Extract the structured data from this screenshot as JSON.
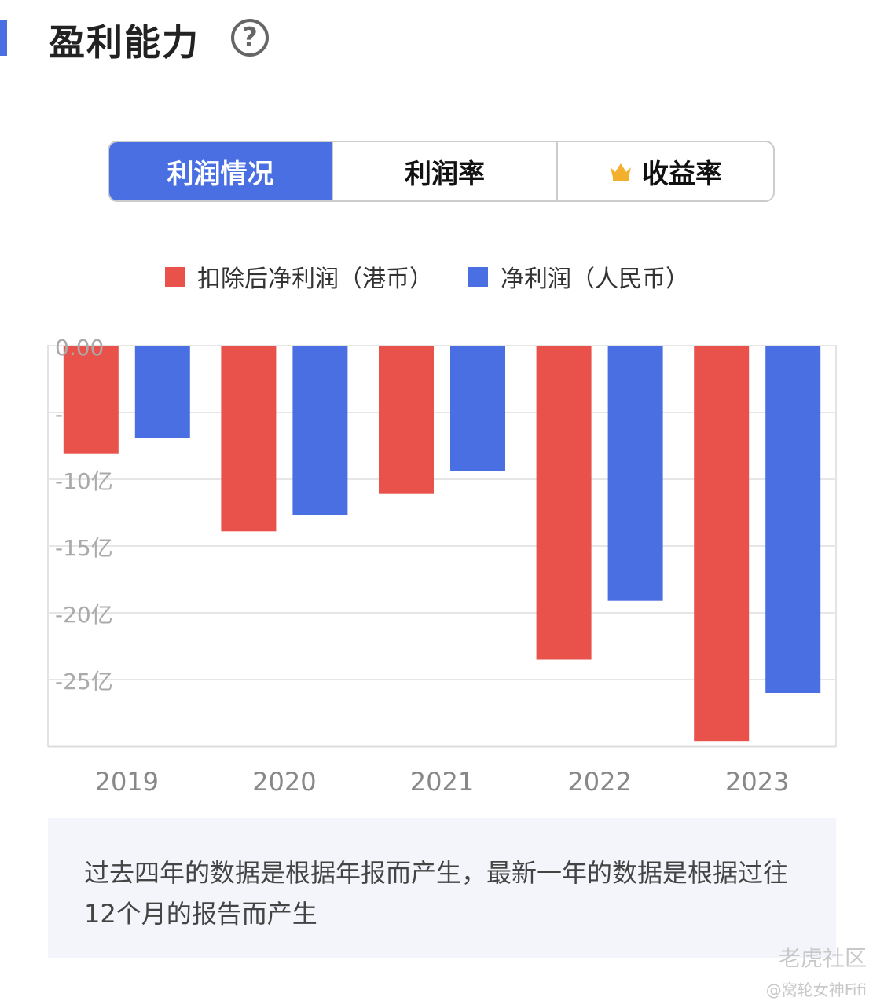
{
  "header": {
    "title": "盈利能力",
    "help_icon": "question-circle-icon",
    "help_glyph": "?"
  },
  "tabs": [
    {
      "label": "利润情况",
      "active": true
    },
    {
      "label": "利润率",
      "active": false
    },
    {
      "label": "收益率",
      "active": false,
      "icon": "crown-icon"
    }
  ],
  "colors": {
    "accent": "#4a6fe3",
    "red_series": "#e8524a",
    "blue_series": "#4a6fe3"
  },
  "chart_data": {
    "type": "bar",
    "categories": [
      "2019",
      "2020",
      "2021",
      "2022",
      "2023"
    ],
    "series": [
      {
        "name": "扣除后净利润（港币）",
        "color": "#e8524a",
        "values": [
          -8.1,
          -13.9,
          -11.1,
          -23.5,
          -29.6
        ]
      },
      {
        "name": "净利润（人民币）",
        "color": "#4a6fe3",
        "values": [
          -6.9,
          -12.7,
          -9.4,
          -19.1,
          -26.0
        ]
      }
    ],
    "yticks": [
      0,
      -5,
      -10,
      -15,
      -20,
      -25
    ],
    "ytick_labels": [
      "0.00",
      "-",
      "-10亿",
      "-15亿",
      "-20亿",
      "-25亿"
    ],
    "ylim": [
      -30,
      0
    ],
    "legend": "top",
    "grid": true,
    "ylabel": "",
    "xlabel": ""
  },
  "note": "过去四年的数据是根据年报而产生，最新一年的数据是根据过往12个月的报告而产生",
  "watermark": {
    "brand": "老虎社区",
    "user": "@窝轮女神Fifi"
  }
}
